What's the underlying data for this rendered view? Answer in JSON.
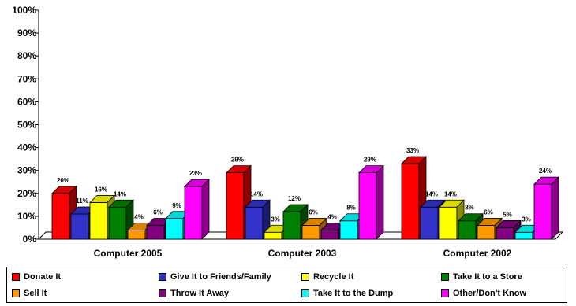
{
  "chart_data": {
    "type": "bar",
    "title": "",
    "xlabel": "",
    "ylabel": "",
    "ylim": [
      0,
      100
    ],
    "yticks": [
      "0%",
      "10%",
      "20%",
      "30%",
      "40%",
      "50%",
      "60%",
      "70%",
      "80%",
      "90%",
      "100%"
    ],
    "categories": [
      "Computer 2005",
      "Computer 2003",
      "Computer 2002"
    ],
    "series": [
      {
        "name": "Donate It",
        "color": "#ff0000",
        "values": [
          20,
          29,
          33
        ],
        "labels": [
          "20%",
          "29%",
          "33%"
        ]
      },
      {
        "name": "Give It to Friends/Family",
        "color": "#3333cc",
        "values": [
          11,
          14,
          14
        ],
        "labels": [
          "11%",
          "14%",
          "14%"
        ]
      },
      {
        "name": "Recycle It",
        "color": "#ffff00",
        "values": [
          16,
          3,
          14
        ],
        "labels": [
          "16%",
          "3%",
          "14%"
        ]
      },
      {
        "name": "Take It to a Store",
        "color": "#008000",
        "values": [
          14,
          12,
          8
        ],
        "labels": [
          "14%",
          "12%",
          "8%"
        ]
      },
      {
        "name": "Sell It",
        "color": "#ff9900",
        "values": [
          4,
          6,
          6
        ],
        "labels": [
          "4%",
          "6%",
          "6%"
        ]
      },
      {
        "name": "Throw It Away",
        "color": "#800080",
        "values": [
          6,
          4,
          5
        ],
        "labels": [
          "6%",
          "4%",
          "5%"
        ]
      },
      {
        "name": "Take It to the Dump",
        "color": "#00ffff",
        "values": [
          9,
          8,
          3
        ],
        "labels": [
          "9%",
          "8%",
          "3%"
        ]
      },
      {
        "name": "Other/Don't Know",
        "color": "#ff00ff",
        "values": [
          23,
          29,
          24
        ],
        "labels": [
          "23%",
          "29%",
          "24%"
        ]
      }
    ],
    "grid": false,
    "legend_position": "bottom",
    "bar_style": "3d"
  }
}
